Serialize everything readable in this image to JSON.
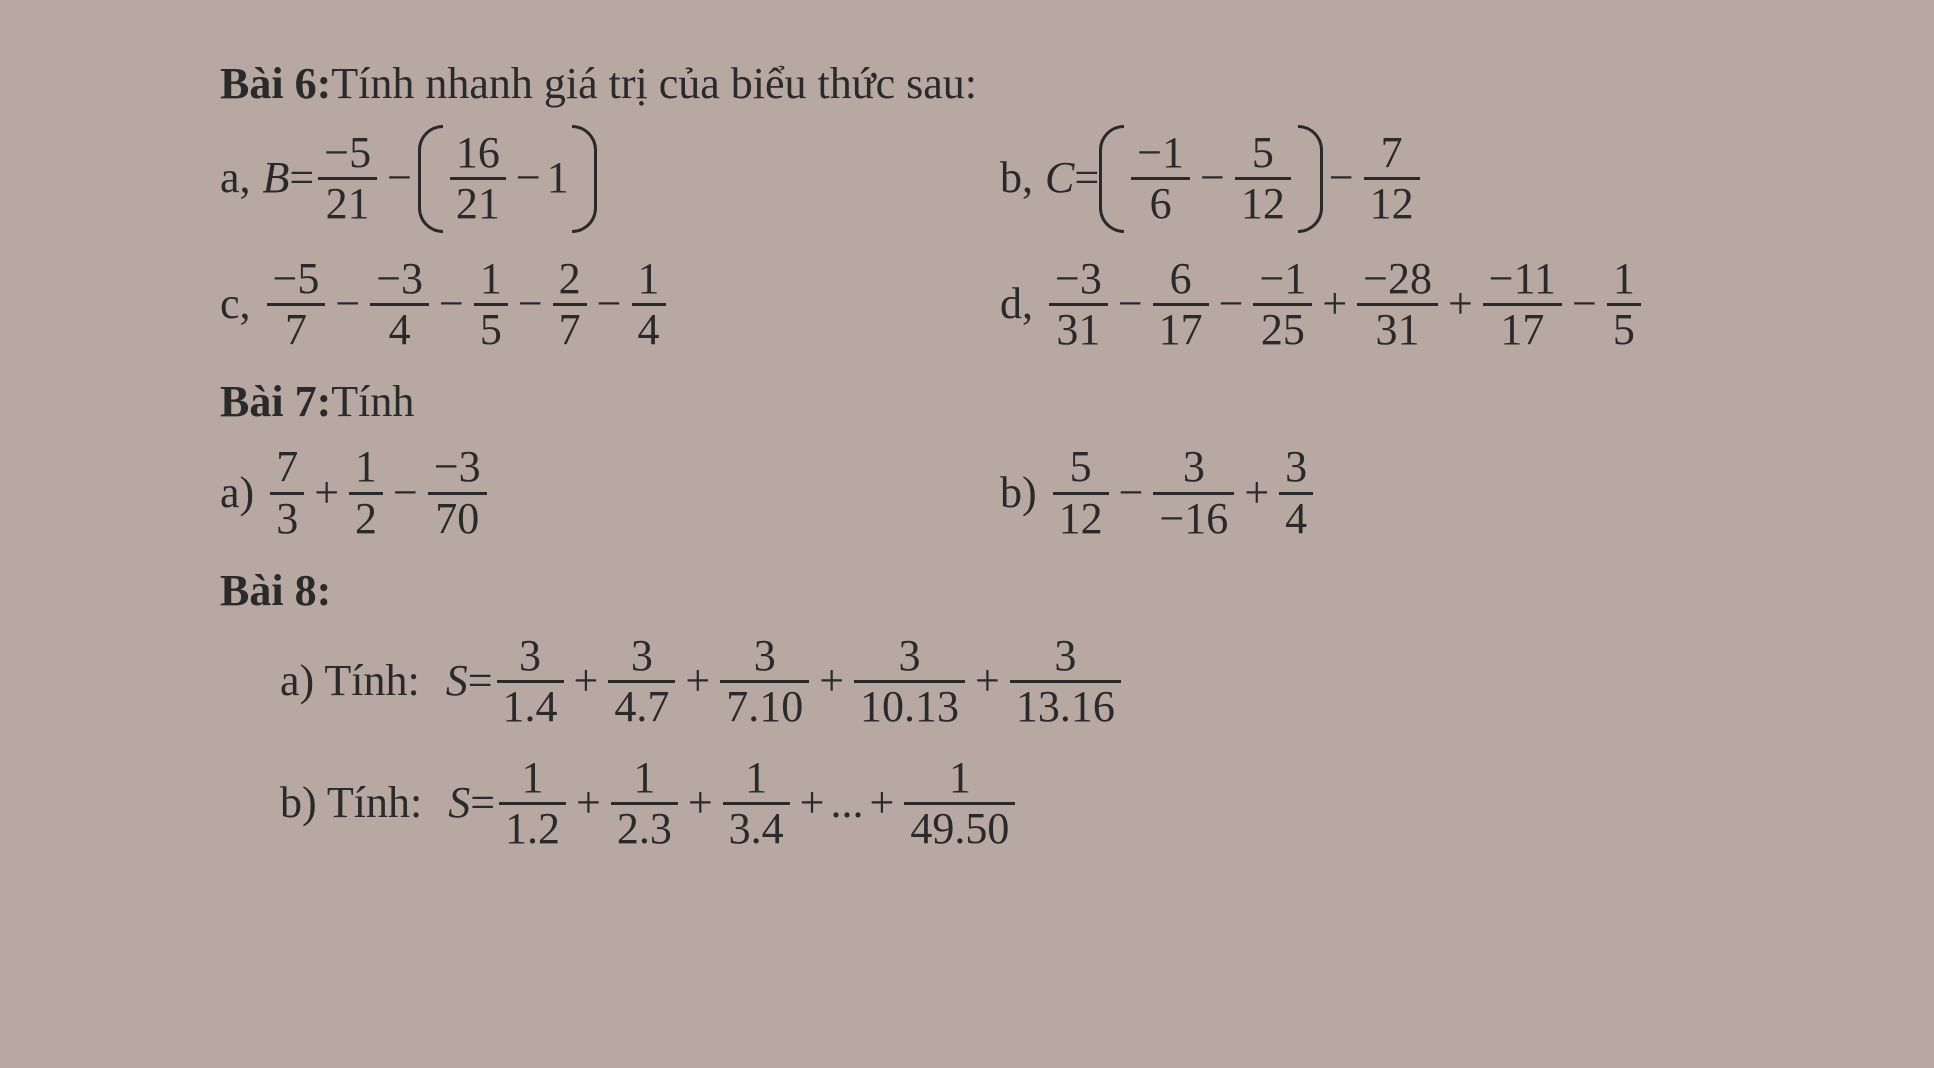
{
  "bai6": {
    "title_prefix": "Bài 6:",
    "title_rest": " Tính nhanh giá trị của biểu thức sau:",
    "a": {
      "label": "a,",
      "eq_left": "B",
      "eq_sym": " = ",
      "f1_num": "−5",
      "f1_den": "21",
      "minus": "−",
      "p_f_num": "16",
      "p_f_den": "21",
      "p_minus": "−",
      "p_one": "1"
    },
    "b": {
      "label": "b,",
      "eq_left": "C",
      "eq_sym": " = ",
      "p_f1_num": "−1",
      "p_f1_den": "6",
      "p_minus": "−",
      "p_f2_num": "5",
      "p_f2_den": "12",
      "minus": "−",
      "f_out_num": "7",
      "f_out_den": "12"
    },
    "c": {
      "label": "c,",
      "f1_num": "−5",
      "f1_den": "7",
      "o1": "−",
      "f2_num": "−3",
      "f2_den": "4",
      "o2": "−",
      "f3_num": "1",
      "f3_den": "5",
      "o3": "−",
      "f4_num": "2",
      "f4_den": "7",
      "o4": "−",
      "f5_num": "1",
      "f5_den": "4"
    },
    "d": {
      "label": "d,",
      "f1_num": "−3",
      "f1_den": "31",
      "o1": "−",
      "f2_num": "6",
      "f2_den": "17",
      "o2": "−",
      "f3_num": "−1",
      "f3_den": "25",
      "o3": "+",
      "f4_num": "−28",
      "f4_den": "31",
      "o4": "+",
      "f5_num": "−11",
      "f5_den": "17",
      "o5": "−",
      "f6_num": "1",
      "f6_den": "5"
    }
  },
  "bai7": {
    "title_prefix": "Bài 7:",
    "title_rest": "  Tính",
    "a": {
      "label": "a)",
      "f1_num": "7",
      "f1_den": "3",
      "o1": "+",
      "f2_num": "1",
      "f2_den": "2",
      "o2": "−",
      "f3_num": "−3",
      "f3_den": "70"
    },
    "b": {
      "label": "b)",
      "f1_num": "5",
      "f1_den": "12",
      "o1": "−",
      "f2_num": "3",
      "f2_den": "−16",
      "o2": "+",
      "f3_num": "3",
      "f3_den": "4"
    }
  },
  "bai8": {
    "title": "Bài 8:",
    "a": {
      "label": "a)  Tính:",
      "lhs": "S",
      "eq": " = ",
      "t1_num": "3",
      "t1_den": "1.4",
      "o1": "+",
      "t2_num": "3",
      "t2_den": "4.7",
      "o2": "+",
      "t3_num": "3",
      "t3_den": "7.10",
      "o3": "+",
      "t4_num": "3",
      "t4_den": "10.13",
      "o4": "+",
      "t5_num": "3",
      "t5_den": "13.16"
    },
    "b": {
      "label": "b)  Tính:",
      "lhs": "S",
      "eq": " = ",
      "t1_num": "1",
      "t1_den": "1.2",
      "o1": "+",
      "t2_num": "1",
      "t2_den": "2.3",
      "o2": "+",
      "t3_num": "1",
      "t3_den": "3.4",
      "o3": "+",
      "dots": "...",
      "o4": "+",
      "t5_num": "1",
      "t5_den": "49.50"
    }
  }
}
